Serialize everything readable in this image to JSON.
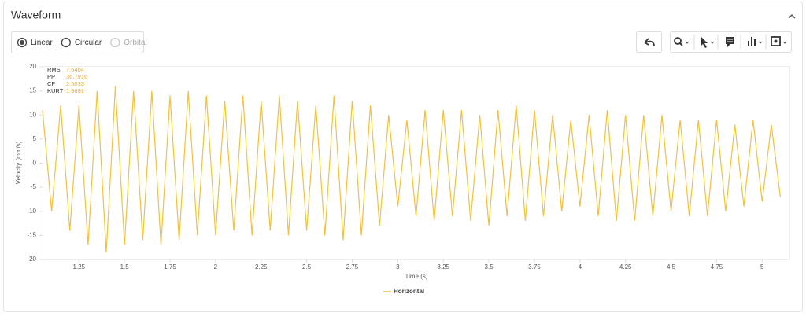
{
  "ui": {
    "header": "Waveform",
    "modes": [
      "Linear",
      "Circular",
      "Orbital"
    ],
    "selected_mode": "Linear",
    "disabled_mode": "Orbital"
  },
  "chart_data": {
    "type": "line",
    "x_label": "Time (s)",
    "y_label": "Velocity (mm/s)",
    "stats": [
      {
        "label": "RMS",
        "value": 7.6404
      },
      {
        "label": "PP",
        "value": 36.7916
      },
      {
        "label": "CF",
        "value": 2.5033
      },
      {
        "label": "KURT",
        "value": 1.9691
      }
    ],
    "x": [
      1.05,
      1.1,
      1.15,
      1.2,
      1.25,
      1.3,
      1.35,
      1.4,
      1.45,
      1.5,
      1.55,
      1.6,
      1.65,
      1.7,
      1.75,
      1.8,
      1.85,
      1.9,
      1.95,
      2.0,
      2.05,
      2.1,
      2.15,
      2.2,
      2.25,
      2.3,
      2.35,
      2.4,
      2.45,
      2.5,
      2.55,
      2.6,
      2.65,
      2.7,
      2.75,
      2.8,
      2.85,
      2.9,
      2.95,
      3.0,
      3.05,
      3.1,
      3.15,
      3.2,
      3.25,
      3.3,
      3.35,
      3.4,
      3.45,
      3.5,
      3.55,
      3.6,
      3.65,
      3.7,
      3.75,
      3.8,
      3.85,
      3.9,
      3.95,
      4.0,
      4.05,
      4.1,
      4.15,
      4.2,
      4.25,
      4.3,
      4.35,
      4.4,
      4.45,
      4.5,
      4.55,
      4.6,
      4.65,
      4.7,
      4.75,
      4.8,
      4.85,
      4.9,
      4.95,
      5.0,
      5.05,
      5.1
    ],
    "series": [
      {
        "name": "Horizontal",
        "color": "#f4c13a",
        "values": [
          11,
          -10,
          12,
          -14,
          12,
          -17,
          15,
          -18.5,
          16,
          -17,
          15,
          -16,
          15,
          -17,
          14,
          -16,
          15,
          -15,
          14,
          -15,
          13,
          -14,
          14,
          -15,
          13,
          -14,
          14,
          -15,
          13,
          -14,
          12,
          -15,
          14,
          -16,
          13,
          -15,
          12,
          -13,
          10,
          -9,
          9,
          -11,
          11,
          -12,
          11,
          -11,
          11,
          -12,
          10,
          -13,
          11,
          -11,
          12,
          -12,
          11,
          -11,
          10,
          -10,
          9,
          -9,
          10,
          -11,
          11,
          -12,
          10,
          -12,
          10,
          -11,
          10,
          -10,
          9,
          -11,
          9,
          -11,
          9,
          -10,
          8,
          -9,
          9,
          -8,
          8,
          -7
        ]
      }
    ],
    "xlim": [
      1.05,
      5.15
    ],
    "ylim": [
      -20,
      20
    ],
    "xticks": [
      1.25,
      1.5,
      1.75,
      2,
      2.25,
      2.5,
      2.75,
      3,
      3.25,
      3.5,
      3.75,
      4,
      4.25,
      4.5,
      4.75,
      5
    ],
    "yticks": [
      -20,
      -15,
      -10,
      -5,
      0,
      5,
      10,
      15,
      20
    ],
    "legend": "bottom"
  }
}
